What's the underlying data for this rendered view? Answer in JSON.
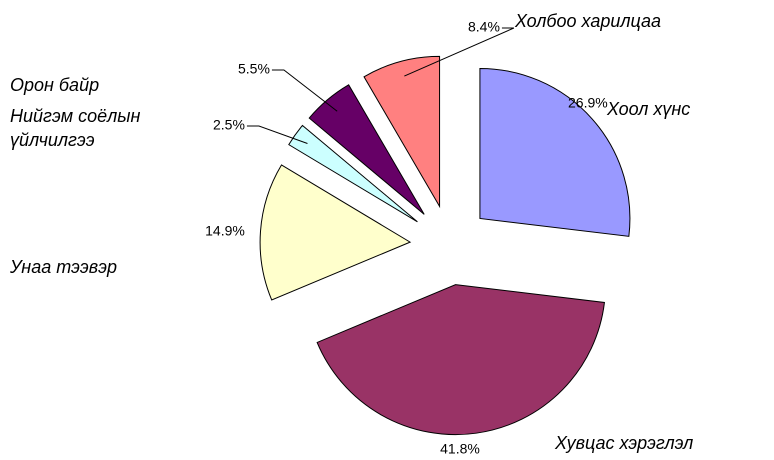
{
  "chart_data": {
    "type": "pie",
    "categories": [
      "Хоол хүнс",
      "Хувцас хэрэглэл",
      "Унаа тээвэр",
      "Нийгэм соёлын үйлчилгээ",
      "Орон байр",
      "Холбоо харилцаа"
    ],
    "values": [
      26.9,
      41.8,
      14.9,
      2.5,
      5.5,
      8.4
    ],
    "value_labels": [
      "26.9%",
      "41.8%",
      "14.9%",
      "2.5%",
      "5.5%",
      "8.4%"
    ],
    "colors": [
      "#9999ff",
      "#993366",
      "#ffffcc",
      "#ccffff",
      "#660066",
      "#ff8080"
    ]
  }
}
